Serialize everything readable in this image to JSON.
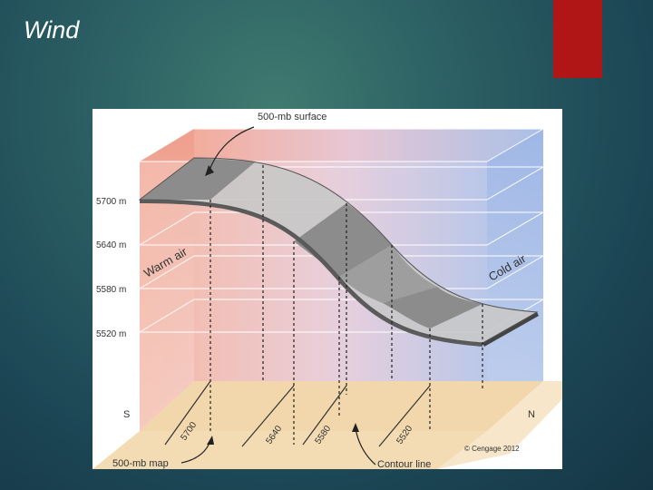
{
  "slide": {
    "title": "Wind",
    "accent_color": "#b01616"
  },
  "diagram": {
    "callouts": {
      "surface": "500-mb surface",
      "map": "500-mb map",
      "contour": "Contour line"
    },
    "heights": [
      "5700 m",
      "5640 m",
      "5580 m",
      "5520 m"
    ],
    "air_masses": {
      "warm": "Warm air",
      "cold": "Cold air"
    },
    "directions": {
      "south": "S",
      "north": "N"
    },
    "contour_values": [
      "5700",
      "5640",
      "5580",
      "5520"
    ],
    "copyright": "© Cengage 2012",
    "colors": {
      "warm": "#f0a99a",
      "cold": "#a9bfe6",
      "map": "#f2d9b0",
      "surface_dark": "#8f8f8f",
      "surface_light": "#c8c8c8"
    }
  }
}
